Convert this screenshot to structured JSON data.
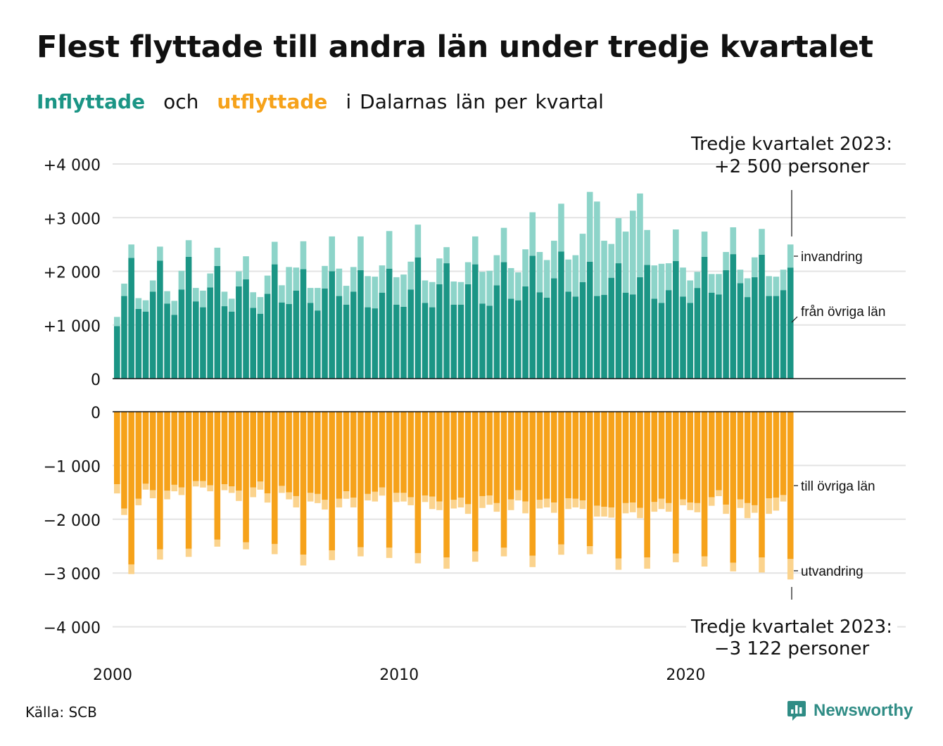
{
  "title": "Flest flyttade till andra län under tredje kvartalet",
  "subtitle": {
    "inflow": "Inflyttade",
    "and": "och",
    "outflow": "utflyttade",
    "rest": [
      "i",
      "Dalarnas",
      "län",
      "per",
      "kvartal"
    ]
  },
  "source": "Källa: SCB",
  "brand": "Newsworthy",
  "colors": {
    "domestic_in": "#1b9585",
    "immigration": "#8dd4c9",
    "domestic_out": "#f6a21a",
    "emigration": "#fbd38d",
    "grid": "#e3e3e3",
    "axis": "#111111",
    "brand": "#2f8c85"
  },
  "chart_data": {
    "type": "bar",
    "stacked": true,
    "x_start": 2000,
    "x_ticks": [
      "2000",
      "2010",
      "2020"
    ],
    "top_panel": {
      "ylim": [
        0,
        4000
      ],
      "y_ticks": [
        "0",
        "+1 000",
        "+2 000",
        "+3 000",
        "+4 000"
      ],
      "grid": true,
      "series": [
        {
          "name": "från övriga län",
          "values": [
            980,
            1540,
            2250,
            1300,
            1250,
            1620,
            2200,
            1400,
            1190,
            1660,
            2270,
            1440,
            1330,
            1700,
            2100,
            1350,
            1250,
            1720,
            1850,
            1320,
            1210,
            1580,
            2130,
            1420,
            1390,
            1640,
            2040,
            1410,
            1270,
            1680,
            2000,
            1540,
            1380,
            1620,
            2020,
            1330,
            1310,
            1600,
            2050,
            1380,
            1340,
            1660,
            2260,
            1410,
            1330,
            1760,
            2150,
            1380,
            1380,
            1760,
            2130,
            1400,
            1360,
            1740,
            2170,
            1490,
            1460,
            1720,
            2290,
            1610,
            1510,
            1870,
            2370,
            1620,
            1530,
            1800,
            2180,
            1540,
            1560,
            1880,
            2150,
            1600,
            1570,
            1890,
            2120,
            1490,
            1410,
            1650,
            2190,
            1530,
            1410,
            1690,
            2270,
            1600,
            1570,
            2020,
            2320,
            1780,
            1520,
            1890,
            2310,
            1540,
            1540,
            1650,
            2070
          ]
        },
        {
          "name": "invandring",
          "values": [
            170,
            230,
            250,
            200,
            210,
            210,
            260,
            230,
            260,
            350,
            310,
            250,
            310,
            260,
            340,
            270,
            240,
            280,
            430,
            290,
            310,
            340,
            420,
            320,
            690,
            430,
            520,
            280,
            420,
            420,
            650,
            510,
            350,
            460,
            630,
            580,
            590,
            510,
            700,
            510,
            600,
            520,
            610,
            420,
            470,
            480,
            300,
            430,
            420,
            410,
            520,
            590,
            650,
            560,
            640,
            570,
            520,
            690,
            810,
            750,
            700,
            700,
            890,
            600,
            770,
            900,
            1300,
            1760,
            1010,
            630,
            840,
            1140,
            1560,
            1560,
            650,
            620,
            730,
            500,
            590,
            540,
            420,
            300,
            470,
            350,
            380,
            340,
            500,
            250,
            350,
            370,
            480,
            370,
            360,
            380,
            430
          ]
        }
      ]
    },
    "bottom_panel": {
      "ylim": [
        -4000,
        0
      ],
      "y_ticks": [
        "0",
        "−1 000",
        "−2 000",
        "−3 000",
        "−4 000"
      ],
      "grid": true,
      "series": [
        {
          "name": "till övriga län",
          "values": [
            -1350,
            -1800,
            -2840,
            -1620,
            -1340,
            -1460,
            -2560,
            -1470,
            -1360,
            -1410,
            -2550,
            -1290,
            -1290,
            -1370,
            -2380,
            -1350,
            -1390,
            -1470,
            -2430,
            -1410,
            -1300,
            -1520,
            -2460,
            -1380,
            -1500,
            -1570,
            -2660,
            -1510,
            -1530,
            -1640,
            -2580,
            -1620,
            -1480,
            -1600,
            -2520,
            -1530,
            -1490,
            -1410,
            -2530,
            -1510,
            -1510,
            -1590,
            -2630,
            -1560,
            -1580,
            -1670,
            -2710,
            -1640,
            -1600,
            -1720,
            -2600,
            -1570,
            -1560,
            -1700,
            -2530,
            -1630,
            -1460,
            -1670,
            -2680,
            -1640,
            -1620,
            -1690,
            -2470,
            -1610,
            -1620,
            -1650,
            -2500,
            -1750,
            -1770,
            -1780,
            -2730,
            -1700,
            -1690,
            -1790,
            -2710,
            -1680,
            -1620,
            -1700,
            -2640,
            -1630,
            -1690,
            -1700,
            -2690,
            -1590,
            -1460,
            -1730,
            -2810,
            -1630,
            -1700,
            -1740,
            -2710,
            -1610,
            -1600,
            -1550,
            -2740
          ]
        },
        {
          "name": "utvandring",
          "values": [
            -170,
            -120,
            -180,
            -120,
            -110,
            -150,
            -190,
            -160,
            -120,
            -140,
            -150,
            -100,
            -120,
            -110,
            -130,
            -110,
            -120,
            -190,
            -130,
            -180,
            -150,
            -170,
            -190,
            -130,
            -130,
            -210,
            -200,
            -160,
            -170,
            -180,
            -180,
            -160,
            -140,
            -180,
            -170,
            -120,
            -180,
            -150,
            -190,
            -170,
            -160,
            -150,
            -190,
            -120,
            -230,
            -160,
            -210,
            -160,
            -180,
            -180,
            -190,
            -220,
            -170,
            -160,
            -160,
            -200,
            -190,
            -220,
            -210,
            -160,
            -160,
            -190,
            -190,
            -200,
            -160,
            -160,
            -150,
            -200,
            -180,
            -190,
            -210,
            -190,
            -180,
            -190,
            -210,
            -180,
            -190,
            -160,
            -160,
            -110,
            -140,
            -170,
            -190,
            -160,
            -110,
            -170,
            -160,
            -160,
            -280,
            -140,
            -280,
            -290,
            -240,
            -120,
            -380
          ]
        }
      ]
    },
    "annotations": {
      "series_labels": [
        "invandring",
        "från övriga län",
        "till övriga län",
        "utvandring"
      ],
      "top_callout": [
        "Tredje kvartalet 2023:",
        "+2 500 personer"
      ],
      "bottom_callout": [
        "Tredje kvartalet 2023:",
        "−3 122 personer"
      ]
    }
  }
}
